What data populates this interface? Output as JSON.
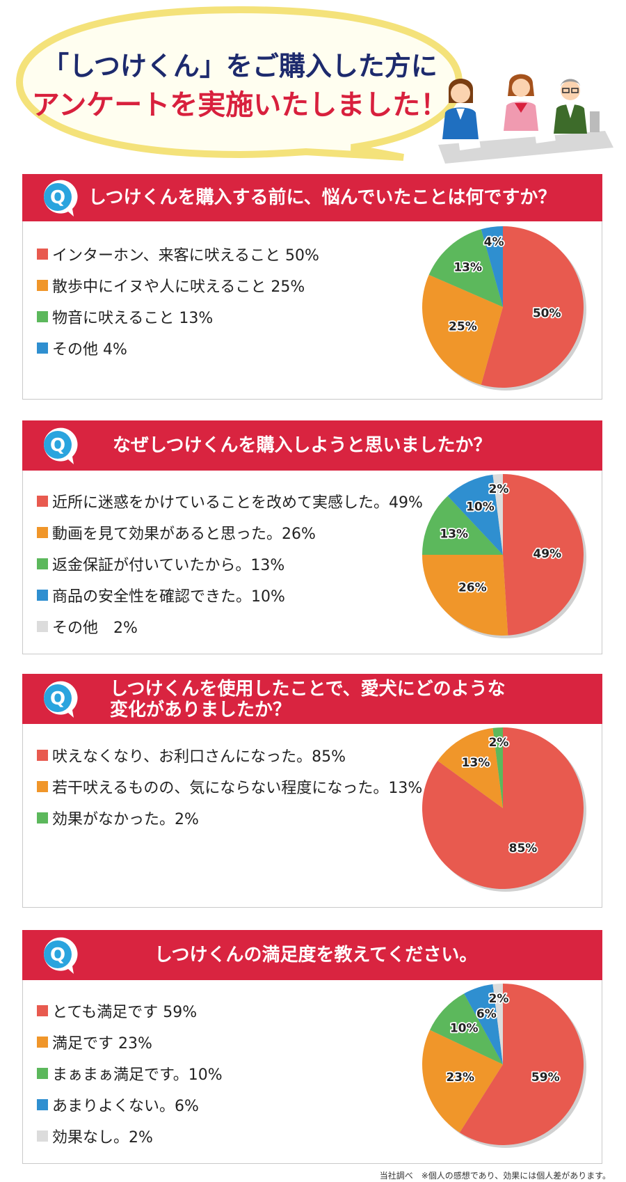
{
  "header": {
    "line1": "「しつけくん」をご購入した方に",
    "line2": "アンケートを実施いたしました！"
  },
  "colors": {
    "accent": "#d92440",
    "red": "#e85a4f",
    "orange": "#f0962a",
    "green": "#5cb85c",
    "blue": "#2f8fd0",
    "gray": "#dcdcdc"
  },
  "chart_data": [
    {
      "type": "pie",
      "question": "しつけくんを購入する前に、悩んでいたことは何ですか？",
      "legend": [
        "インターホン、来客に吠えること 50%",
        "散歩中にイヌや人に吠えること 25%",
        "物音に吠えること 13%",
        "その他 4%"
      ],
      "values": [
        50,
        25,
        13,
        4
      ],
      "labels": [
        "50%",
        "25%",
        "13%",
        "4%"
      ],
      "colors": [
        "red",
        "orange",
        "green",
        "blue"
      ]
    },
    {
      "type": "pie",
      "question": "なぜしつけくんを購入しようと思いましたか？",
      "legend": [
        "近所に迷惑をかけていることを改めて実感した。49%",
        "動画を見て効果があると思った。26%",
        "返金保証が付いていたから。13%",
        "商品の安全性を確認できた。10%",
        "その他　2%"
      ],
      "values": [
        49,
        26,
        13,
        10,
        2
      ],
      "labels": [
        "49%",
        "26%",
        "13%",
        "10%",
        "2%"
      ],
      "colors": [
        "red",
        "orange",
        "green",
        "blue",
        "gray"
      ]
    },
    {
      "type": "pie",
      "question": [
        "しつけくんを使用したことで、愛犬にどのような",
        "変化がありましたか？"
      ],
      "legend": [
        "吠えなくなり、お利口さんになった。85%",
        "若干吠えるものの、気にならない程度になった。13%",
        "効果がなかった。2%"
      ],
      "values": [
        85,
        13,
        2
      ],
      "labels": [
        "85%",
        "13%",
        "2%"
      ],
      "colors": [
        "red",
        "orange",
        "green"
      ]
    },
    {
      "type": "pie",
      "question": "しつけくんの満足度を教えてください。",
      "legend": [
        "とても満足です 59%",
        "満足です 23%",
        "まぁまぁ満足です。10%",
        "あまりよくない。6%",
        "効果なし。2%"
      ],
      "values": [
        59,
        23,
        10,
        6,
        2
      ],
      "labels": [
        "59%",
        "23%",
        "10%",
        "6%",
        "2%"
      ],
      "colors": [
        "red",
        "orange",
        "green",
        "blue",
        "gray"
      ]
    }
  ],
  "footnote": "当社調べ　※個人の感想であり、効果には個人差があります。"
}
